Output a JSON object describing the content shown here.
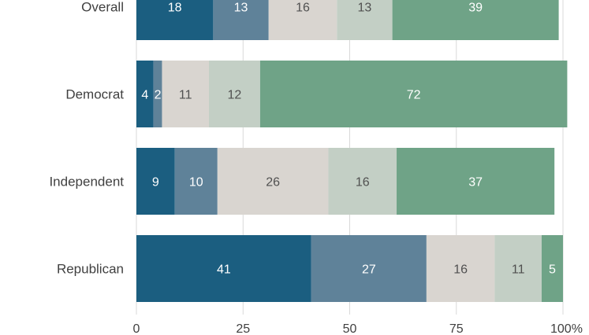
{
  "chart_data": {
    "type": "bar",
    "orientation": "horizontal",
    "stacked": true,
    "categories": [
      "Overall",
      "Democrat",
      "Independent",
      "Republican"
    ],
    "series": [
      {
        "values": [
          18,
          4,
          9,
          41
        ],
        "color": "#1b5e80",
        "label_color": "#ffffff"
      },
      {
        "values": [
          13,
          2,
          10,
          27
        ],
        "color": "#5f8299",
        "label_color": "#ffffff"
      },
      {
        "values": [
          16,
          11,
          26,
          16
        ],
        "color": "#d9d5d0",
        "label_color": "#505050"
      },
      {
        "values": [
          13,
          12,
          16,
          11
        ],
        "color": "#c3cfc5",
        "label_color": "#505050"
      },
      {
        "values": [
          39,
          72,
          37,
          5
        ],
        "color": "#6fa387",
        "label_color": "#ffffff"
      }
    ],
    "xlim": [
      0,
      100
    ],
    "x_ticks": [
      "0",
      "25",
      "50",
      "75",
      "100%"
    ],
    "x_tick_values": [
      0,
      25,
      50,
      75,
      100
    ],
    "grid": true,
    "legend": "none",
    "title": "",
    "xlabel": "",
    "ylabel": ""
  }
}
